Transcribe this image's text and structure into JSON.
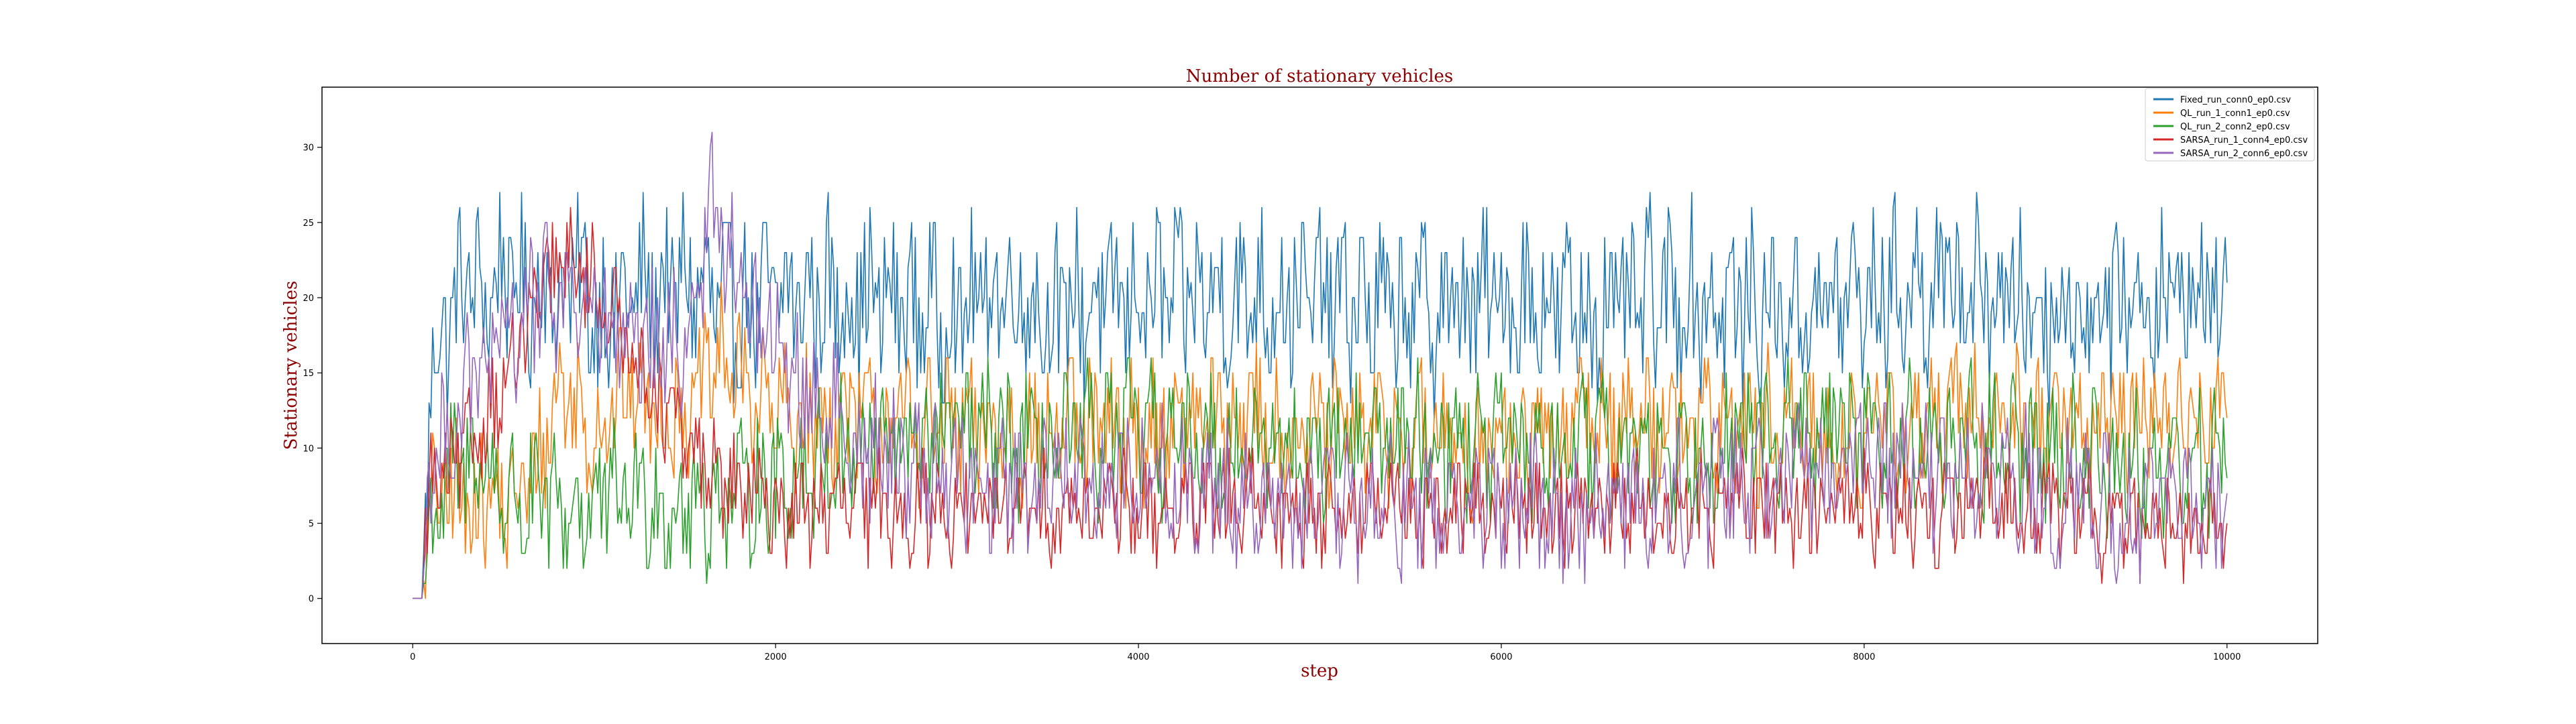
{
  "chart_data": {
    "type": "line",
    "title": "Number of stationary vehicles",
    "xlabel": "step",
    "ylabel": "Stationary vehicles",
    "xlim": [
      -500,
      10500
    ],
    "ylim": [
      -3,
      34
    ],
    "x_ticks": [
      0,
      2000,
      4000,
      6000,
      8000,
      10000
    ],
    "y_ticks": [
      0,
      5,
      10,
      15,
      20,
      25,
      30
    ],
    "grid": false,
    "legend_position": "top-right",
    "series": [
      {
        "name": "Fixed_run_conn0_ep0.csv",
        "color": "#1f77b4",
        "x": [
          0,
          50,
          100,
          200,
          300,
          400,
          500,
          600,
          700,
          800,
          900,
          1000,
          1200,
          1500,
          1800,
          2000,
          2500,
          3000,
          3250,
          3500,
          4000,
          4500,
          5000,
          5500,
          6000,
          6500,
          7000,
          7500,
          8000,
          8500,
          9000,
          9500,
          10000
        ],
        "y": [
          0,
          0,
          15,
          19,
          21,
          20,
          22,
          20,
          21,
          20,
          22,
          19,
          20,
          21,
          19,
          20,
          20,
          19,
          21,
          19,
          20,
          20,
          20,
          19,
          20,
          19,
          20,
          19,
          20,
          21,
          19,
          20,
          20
        ]
      },
      {
        "name": "QL_run_1_conn1_ep0.csv",
        "color": "#ff7f0e",
        "x": [
          0,
          50,
          100,
          200,
          300,
          400,
          500,
          600,
          700,
          800,
          900,
          1000,
          1200,
          1500,
          1700,
          2000,
          2500,
          3000,
          3500,
          4000,
          4500,
          5000,
          5500,
          6000,
          6500,
          7000,
          7500,
          8000,
          8500,
          9000,
          9500,
          10000
        ],
        "y": [
          0,
          0,
          6,
          7,
          6,
          7,
          6,
          7,
          9,
          14,
          13,
          11,
          14,
          12,
          16,
          12,
          12,
          11,
          11,
          11,
          12,
          11,
          11,
          10,
          12,
          12,
          11,
          11,
          12,
          12,
          12,
          12
        ]
      },
      {
        "name": "QL_run_2_conn2_ep0.csv",
        "color": "#2ca02c",
        "x": [
          0,
          50,
          100,
          200,
          300,
          400,
          500,
          600,
          700,
          800,
          900,
          1000,
          1200,
          1500,
          1800,
          2000,
          2500,
          3000,
          3500,
          4000,
          4500,
          5000,
          5500,
          6000,
          6500,
          7000,
          7500,
          8000,
          8500,
          9000,
          9500,
          10000
        ],
        "y": [
          0,
          0,
          5,
          8,
          9,
          9,
          7,
          6,
          6,
          6,
          6,
          6,
          7,
          6,
          7,
          8,
          10,
          11,
          10,
          11,
          10,
          10,
          11,
          10,
          10,
          10,
          11,
          11,
          10,
          10,
          9,
          9
        ]
      },
      {
        "name": "SARSA_run_1_conn4_ep0.csv",
        "color": "#d62728",
        "x": [
          0,
          50,
          100,
          200,
          300,
          400,
          500,
          600,
          700,
          800,
          900,
          1000,
          1200,
          1500,
          1800,
          2000,
          2500,
          3000,
          3500,
          4000,
          4500,
          5000,
          5500,
          6000,
          6500,
          7000,
          7500,
          8000,
          8500,
          9000,
          9500,
          10000
        ],
        "y": [
          0,
          0,
          8,
          8,
          10,
          12,
          14,
          17,
          20,
          22,
          22,
          21,
          17,
          10,
          7,
          6,
          6,
          6,
          6,
          6,
          6,
          6,
          6,
          6,
          6,
          6,
          6,
          6,
          6,
          6,
          5,
          5
        ]
      },
      {
        "name": "SARSA_run_2_conn6_ep0.csv",
        "color": "#9467bd",
        "x": [
          0,
          50,
          100,
          200,
          300,
          400,
          500,
          600,
          700,
          800,
          900,
          1000,
          1200,
          1500,
          1650,
          1800,
          2000,
          2500,
          3000,
          3500,
          4000,
          4500,
          5000,
          5500,
          6000,
          6500,
          7000,
          7500,
          8000,
          8500,
          9000,
          9500,
          10000
        ],
        "y": [
          0,
          0,
          9,
          11,
          14,
          15,
          17,
          19,
          20,
          20,
          20,
          19,
          16,
          17,
          26,
          21,
          16,
          10,
          8,
          8,
          8,
          7,
          6,
          6,
          6,
          6,
          7,
          9,
          9,
          8,
          7,
          6,
          6
        ]
      }
    ]
  }
}
